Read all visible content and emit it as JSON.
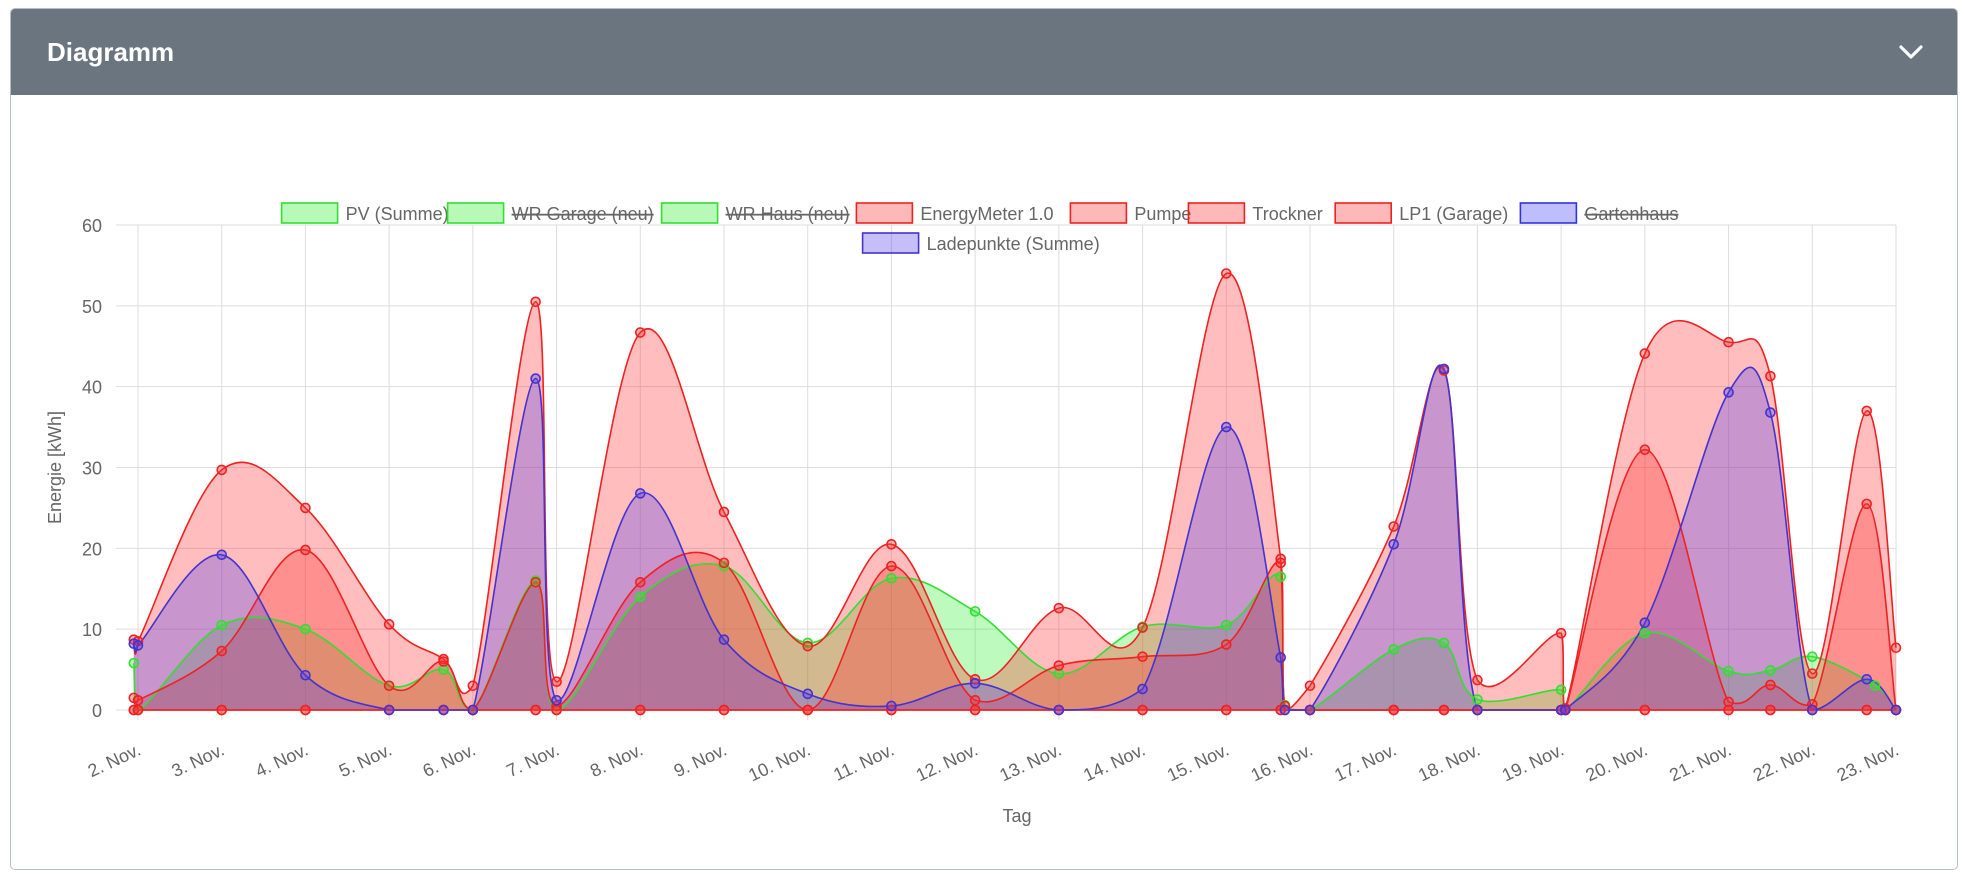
{
  "card": {
    "title": "Diagramm",
    "collapse_icon": "chevron-down-icon"
  },
  "chart_data": {
    "type": "area",
    "xlabel": "Tag",
    "ylabel": "Energie [kWh]",
    "ylim": [
      0,
      60
    ],
    "yticks": [
      0,
      10,
      20,
      30,
      40,
      50,
      60
    ],
    "grid": true,
    "legend_position": "top",
    "x_tick_labels": [
      "2. Nov.",
      "3. Nov.",
      "4. Nov.",
      "5. Nov.",
      "6. Nov.",
      "7. Nov.",
      "8. Nov.",
      "9. Nov.",
      "10. Nov.",
      "11. Nov.",
      "12. Nov.",
      "13. Nov.",
      "14. Nov.",
      "15. Nov.",
      "16. Nov.",
      "17. Nov.",
      "18. Nov.",
      "19. Nov.",
      "20. Nov.",
      "21. Nov.",
      "22. Nov.",
      "23. Nov."
    ],
    "series": [
      {
        "name": "PV (Summe)",
        "hidden": false,
        "stroke": "#33dd33",
        "fill": "#33ee33",
        "points": [
          [
            -0.05,
            5.8
          ],
          [
            0,
            0
          ],
          [
            1,
            10.5
          ],
          [
            2,
            10
          ],
          [
            3,
            3
          ],
          [
            3.65,
            5
          ],
          [
            4,
            0
          ],
          [
            4.75,
            16
          ],
          [
            5,
            0
          ],
          [
            6,
            14
          ],
          [
            7,
            17.8
          ],
          [
            8,
            8.3
          ],
          [
            9,
            16.3
          ],
          [
            10,
            12.2
          ],
          [
            11,
            4.5
          ],
          [
            12,
            10.3
          ],
          [
            13,
            10.5
          ],
          [
            13.65,
            16.5
          ],
          [
            13.7,
            0.6
          ],
          [
            14,
            0
          ],
          [
            15,
            7.5
          ],
          [
            15.6,
            8.3
          ],
          [
            16,
            1.3
          ],
          [
            17,
            2.5
          ],
          [
            17.05,
            0
          ],
          [
            18,
            9.5
          ],
          [
            19,
            4.8
          ],
          [
            19.5,
            4.9
          ],
          [
            20,
            6.6
          ],
          [
            20.75,
            3
          ],
          [
            21,
            0
          ]
        ]
      },
      {
        "name": "WR Garage (neu)",
        "hidden": true,
        "stroke": "#33dd33",
        "fill": "#33ee33",
        "points": []
      },
      {
        "name": "WR Haus (neu)",
        "hidden": true,
        "stroke": "#33dd33",
        "fill": "#33ee33",
        "points": []
      },
      {
        "name": "EnergyMeter 1.0",
        "hidden": false,
        "stroke": "#ee2222",
        "fill": "#ff3333",
        "points": [
          [
            -0.05,
            8.7
          ],
          [
            0,
            8.5
          ],
          [
            1,
            29.7
          ],
          [
            2,
            25
          ],
          [
            3,
            10.6
          ],
          [
            3.65,
            6.3
          ],
          [
            4,
            3
          ],
          [
            4.75,
            50.5
          ],
          [
            5,
            3.5
          ],
          [
            6,
            46.7
          ],
          [
            7,
            24.5
          ],
          [
            8,
            7.9
          ],
          [
            9,
            20.5
          ],
          [
            10,
            3.8
          ],
          [
            11,
            12.6
          ],
          [
            12,
            10.2
          ],
          [
            13,
            54
          ],
          [
            13.65,
            18.7
          ],
          [
            13.7,
            0.5
          ],
          [
            14,
            3
          ],
          [
            15,
            22.7
          ],
          [
            15.6,
            42
          ],
          [
            16,
            3.7
          ],
          [
            17,
            9.5
          ],
          [
            17.05,
            0.2
          ],
          [
            18,
            44.1
          ],
          [
            19,
            45.5
          ],
          [
            19.5,
            41.3
          ],
          [
            20,
            4.5
          ],
          [
            20.65,
            37
          ],
          [
            21,
            7.7
          ]
        ]
      },
      {
        "name": "Pumpe",
        "hidden": false,
        "stroke": "#ee2222",
        "fill": "#ff3333",
        "points": [
          [
            -0.05,
            0
          ],
          [
            0,
            0
          ],
          [
            1,
            0
          ],
          [
            2,
            0
          ],
          [
            3,
            0
          ],
          [
            3.65,
            0
          ],
          [
            4,
            0
          ],
          [
            4.75,
            0
          ],
          [
            5,
            0
          ],
          [
            6,
            0
          ],
          [
            7,
            0
          ],
          [
            8,
            0
          ],
          [
            9,
            0
          ],
          [
            10,
            0
          ],
          [
            11,
            0
          ],
          [
            12,
            0
          ],
          [
            13,
            0
          ],
          [
            13.65,
            0
          ],
          [
            14,
            0
          ],
          [
            15,
            0
          ],
          [
            15.6,
            0
          ],
          [
            16,
            0
          ],
          [
            17,
            0
          ],
          [
            17.05,
            0
          ],
          [
            18,
            0
          ],
          [
            19,
            0
          ],
          [
            19.5,
            0
          ],
          [
            20,
            0
          ],
          [
            20.65,
            0
          ],
          [
            21,
            0
          ]
        ]
      },
      {
        "name": "Trockner",
        "hidden": false,
        "stroke": "#ee2222",
        "fill": "#ff3333",
        "points": [
          [
            -0.05,
            1.5
          ],
          [
            0,
            1.2
          ],
          [
            1,
            7.3
          ],
          [
            2,
            19.8
          ],
          [
            3,
            3
          ],
          [
            3.65,
            6
          ],
          [
            4,
            0
          ],
          [
            4.75,
            15.8
          ],
          [
            5,
            0.5
          ],
          [
            6,
            15.8
          ],
          [
            7,
            18.2
          ],
          [
            8,
            0
          ],
          [
            9,
            17.8
          ],
          [
            10,
            1.2
          ],
          [
            11,
            5.5
          ],
          [
            12,
            6.6
          ],
          [
            13,
            8.1
          ],
          [
            13.65,
            18.2
          ],
          [
            13.7,
            0
          ],
          [
            14,
            0
          ],
          [
            15,
            0
          ],
          [
            15.6,
            0
          ],
          [
            16,
            0
          ],
          [
            17,
            0
          ],
          [
            17.05,
            0
          ],
          [
            18,
            32.2
          ],
          [
            19,
            1
          ],
          [
            19.5,
            3.1
          ],
          [
            20,
            0.7
          ],
          [
            20.65,
            25.5
          ],
          [
            21,
            0
          ]
        ]
      },
      {
        "name": "LP1 (Garage)",
        "hidden": false,
        "stroke": "#ee2222",
        "fill": "#ff3333",
        "points": [
          [
            -0.05,
            0
          ],
          [
            0,
            0
          ],
          [
            1,
            0
          ],
          [
            2,
            0
          ],
          [
            3,
            0
          ],
          [
            3.65,
            0
          ],
          [
            4,
            0
          ],
          [
            4.75,
            0
          ],
          [
            5,
            0
          ],
          [
            6,
            0
          ],
          [
            7,
            0
          ],
          [
            8,
            0
          ],
          [
            9,
            0
          ],
          [
            10,
            0
          ],
          [
            11,
            0
          ],
          [
            12,
            0
          ],
          [
            13,
            0
          ],
          [
            13.65,
            0
          ],
          [
            14,
            0
          ],
          [
            15,
            0
          ],
          [
            15.6,
            0
          ],
          [
            16,
            0
          ],
          [
            17,
            0
          ],
          [
            17.05,
            0
          ],
          [
            18,
            0
          ],
          [
            19,
            0
          ],
          [
            19.5,
            0
          ],
          [
            20,
            0
          ],
          [
            20.65,
            0
          ],
          [
            21,
            0
          ]
        ]
      },
      {
        "name": "Gartenhaus",
        "hidden": true,
        "stroke": "#3333dd",
        "fill": "#4444ff",
        "points": []
      },
      {
        "name": "Ladepunkte (Summe)",
        "hidden": false,
        "stroke": "#4433cc",
        "fill": "#5544ee",
        "points": [
          [
            -0.05,
            8.2
          ],
          [
            0,
            8
          ],
          [
            1,
            19.2
          ],
          [
            2,
            4.3
          ],
          [
            3,
            0
          ],
          [
            3.65,
            0
          ],
          [
            4,
            0
          ],
          [
            4.75,
            41
          ],
          [
            5,
            1.2
          ],
          [
            6,
            26.8
          ],
          [
            7,
            8.7
          ],
          [
            8,
            2
          ],
          [
            9,
            0.5
          ],
          [
            10,
            3.3
          ],
          [
            11,
            0
          ],
          [
            12,
            2.6
          ],
          [
            13,
            35
          ],
          [
            13.65,
            6.5
          ],
          [
            13.7,
            0
          ],
          [
            14,
            0
          ],
          [
            15,
            20.5
          ],
          [
            15.6,
            42.2
          ],
          [
            16,
            0
          ],
          [
            17,
            0
          ],
          [
            17.05,
            0
          ],
          [
            18,
            10.8
          ],
          [
            19,
            39.3
          ],
          [
            19.5,
            36.8
          ],
          [
            20,
            0
          ],
          [
            20.65,
            3.8
          ],
          [
            21,
            0
          ]
        ]
      }
    ]
  }
}
